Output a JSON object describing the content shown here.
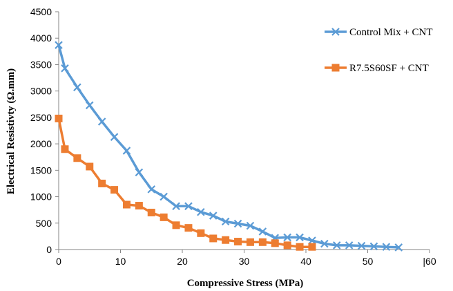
{
  "chart_data": {
    "type": "line",
    "xlabel": "Compressive Stress (MPa)",
    "ylabel": "Electrical  Resistivty (Ω.mm)",
    "xlim": [
      0,
      60
    ],
    "ylim": [
      0,
      4500
    ],
    "x_ticks": [
      "0",
      "10",
      "20",
      "30",
      "40",
      "50",
      "|60"
    ],
    "y_ticks": [
      "0",
      "500",
      "1000",
      "1500",
      "2000",
      "2500",
      "3000",
      "3500",
      "4000",
      "4500"
    ],
    "grid": false,
    "legend_position": "right",
    "series": [
      {
        "name": "Control Mix + CNT",
        "color": "#5B9BD5",
        "marker": "x",
        "x": [
          0,
          1,
          3,
          5,
          7,
          9,
          11,
          13,
          15,
          17,
          19,
          21,
          23,
          25,
          27,
          29,
          31,
          33,
          35,
          37,
          39,
          41,
          43,
          45,
          47,
          49,
          51,
          53,
          55
        ],
        "y": [
          3870,
          3430,
          3070,
          2730,
          2420,
          2130,
          1870,
          1460,
          1140,
          1000,
          820,
          820,
          710,
          640,
          530,
          490,
          450,
          340,
          220,
          230,
          230,
          170,
          110,
          80,
          80,
          70,
          60,
          50,
          40
        ]
      },
      {
        "name": "R7.5S60SF + CNT",
        "color": "#ED7D31",
        "marker": "square",
        "x": [
          0,
          1,
          3,
          5,
          7,
          9,
          11,
          13,
          15,
          17,
          19,
          21,
          23,
          25,
          27,
          29,
          31,
          33,
          35,
          37,
          39,
          41
        ],
        "y": [
          2480,
          1900,
          1730,
          1570,
          1250,
          1130,
          850,
          830,
          700,
          610,
          460,
          410,
          310,
          210,
          180,
          150,
          140,
          140,
          120,
          80,
          50,
          50
        ]
      }
    ]
  }
}
